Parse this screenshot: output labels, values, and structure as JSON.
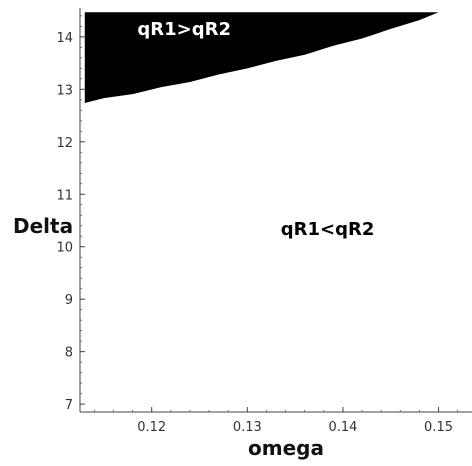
{
  "chart_data": {
    "type": "area",
    "title": "",
    "xlabel": "omega",
    "ylabel": "Delta",
    "xlim": [
      0.1125,
      0.1535
    ],
    "ylim": [
      6.85,
      14.55
    ],
    "x_ticks": [
      0.12,
      0.13,
      0.14,
      0.15
    ],
    "x_tick_labels": [
      "0.12",
      "0.13",
      "0.14",
      "0.15"
    ],
    "y_ticks": [
      7,
      8,
      9,
      10,
      11,
      12,
      13,
      14
    ],
    "y_tick_labels": [
      "7",
      "8",
      "9",
      "10",
      "11",
      "12",
      "13",
      "14"
    ],
    "x_minor_step": 0.002,
    "y_minor_step": 0.2,
    "grid": false,
    "region_top": 14.47,
    "boundary": {
      "omega": [
        0.113,
        0.115,
        0.118,
        0.121,
        0.124,
        0.127,
        0.13,
        0.133,
        0.136,
        0.139,
        0.142,
        0.145,
        0.148,
        0.15
      ],
      "delta": [
        12.75,
        12.82,
        12.92,
        13.03,
        13.15,
        13.27,
        13.41,
        13.53,
        13.67,
        13.82,
        13.98,
        14.14,
        14.33,
        14.47
      ]
    },
    "fill_color": "#000000",
    "annotations": [
      {
        "text": "qR1>qR2",
        "x": 0.1185,
        "y": 14.04,
        "color": "#ffffff"
      },
      {
        "text": "qR1<qR2",
        "x": 0.1335,
        "y": 10.22,
        "color": "#000000"
      }
    ]
  }
}
